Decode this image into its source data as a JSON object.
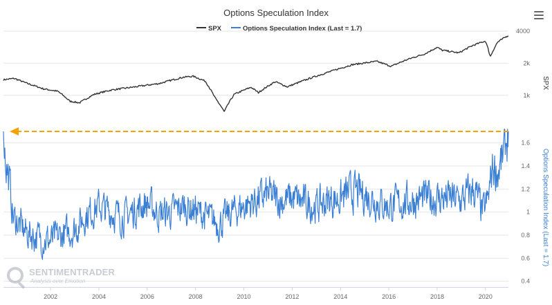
{
  "title": "Options Speculation Index",
  "legend": [
    {
      "name": "SPX",
      "color": "#333333"
    },
    {
      "name": "Options Speculation Index (Last = 1.7)",
      "color": "#3a7fd4"
    }
  ],
  "watermark": {
    "name": "SENTIMENTRADER",
    "tagline": "Analysis over Emotion"
  },
  "menu_icon": "hamburger-menu-icon",
  "reference_line_color": "#f5a200",
  "chart_data": [
    {
      "type": "line",
      "title": "Options Speculation Index",
      "series": [
        {
          "name": "SPX",
          "color": "#333333"
        }
      ],
      "ylabel": "SPX",
      "yscale": "log",
      "ylim": [
        600,
        4000
      ],
      "yticks": [
        {
          "v": 1000,
          "label": "1k"
        },
        {
          "v": 2000,
          "label": "2k"
        },
        {
          "v": 4000,
          "label": "4000"
        }
      ],
      "xlim": [
        2000.05,
        2020.95
      ],
      "x": [
        2000.05,
        2000.5,
        2001.0,
        2001.7,
        2002.3,
        2002.8,
        2003.2,
        2003.8,
        2004.5,
        2005.5,
        2006.5,
        2007.5,
        2007.9,
        2008.4,
        2008.8,
        2009.19,
        2009.6,
        2010.3,
        2010.6,
        2011.3,
        2011.8,
        2012.5,
        2013.5,
        2014.5,
        2015.5,
        2016.1,
        2016.8,
        2017.5,
        2018.0,
        2018.2,
        2018.9,
        2019.5,
        2020.0,
        2020.2,
        2020.5,
        2020.95
      ],
      "y": [
        1400,
        1440,
        1300,
        1150,
        1090,
        880,
        850,
        1020,
        1120,
        1200,
        1290,
        1480,
        1510,
        1360,
        950,
        700,
        1020,
        1190,
        1060,
        1340,
        1200,
        1380,
        1650,
        1940,
        2080,
        1870,
        2180,
        2450,
        2820,
        2650,
        2500,
        2950,
        3230,
        2300,
        3150,
        3650
      ]
    },
    {
      "type": "line",
      "title": "Options Speculation Index",
      "series": [
        {
          "name": "Options Speculation Index (Last = 1.7)",
          "color": "#3a7fd4"
        }
      ],
      "ylabel": "Options Speculation Index (Last = 1.7)",
      "ylim": [
        0.35,
        1.82
      ],
      "yticks": [
        0.4,
        0.6,
        0.8,
        1,
        1.2,
        1.4,
        1.6
      ],
      "reference_line": {
        "value": 1.7
      },
      "xticks": [
        2002,
        2004,
        2006,
        2008,
        2010,
        2012,
        2014,
        2016,
        2018,
        2020
      ],
      "xlim": [
        2000.05,
        2020.95
      ],
      "x": [
        2000.05,
        2000.15,
        2000.3,
        2000.45,
        2000.6,
        2001.0,
        2001.5,
        2002.0,
        2002.5,
        2003.0,
        2003.5,
        2004.0,
        2004.5,
        2005.0,
        2005.5,
        2006.0,
        2006.5,
        2007.0,
        2007.5,
        2008.0,
        2008.5,
        2009.0,
        2009.5,
        2010.0,
        2010.5,
        2011.0,
        2011.5,
        2012.0,
        2012.5,
        2013.0,
        2013.5,
        2014.0,
        2014.5,
        2015.0,
        2015.5,
        2016.0,
        2016.5,
        2017.0,
        2017.5,
        2018.0,
        2018.5,
        2019.0,
        2019.5,
        2019.9,
        2020.1,
        2020.3,
        2020.5,
        2020.7,
        2020.95
      ],
      "y": [
        1.7,
        1.45,
        1.25,
        0.95,
        0.92,
        0.82,
        0.78,
        0.75,
        0.8,
        0.85,
        0.98,
        1.05,
        1.0,
        0.95,
        1.02,
        1.08,
        0.98,
        1.0,
        1.05,
        1.02,
        0.95,
        0.9,
        1.0,
        1.05,
        1.1,
        1.15,
        1.1,
        1.12,
        1.08,
        1.05,
        1.1,
        1.12,
        1.18,
        1.15,
        1.1,
        1.05,
        1.08,
        1.1,
        1.12,
        1.12,
        1.12,
        1.1,
        1.2,
        1.0,
        1.1,
        1.4,
        1.35,
        1.45,
        1.7
      ]
    }
  ]
}
